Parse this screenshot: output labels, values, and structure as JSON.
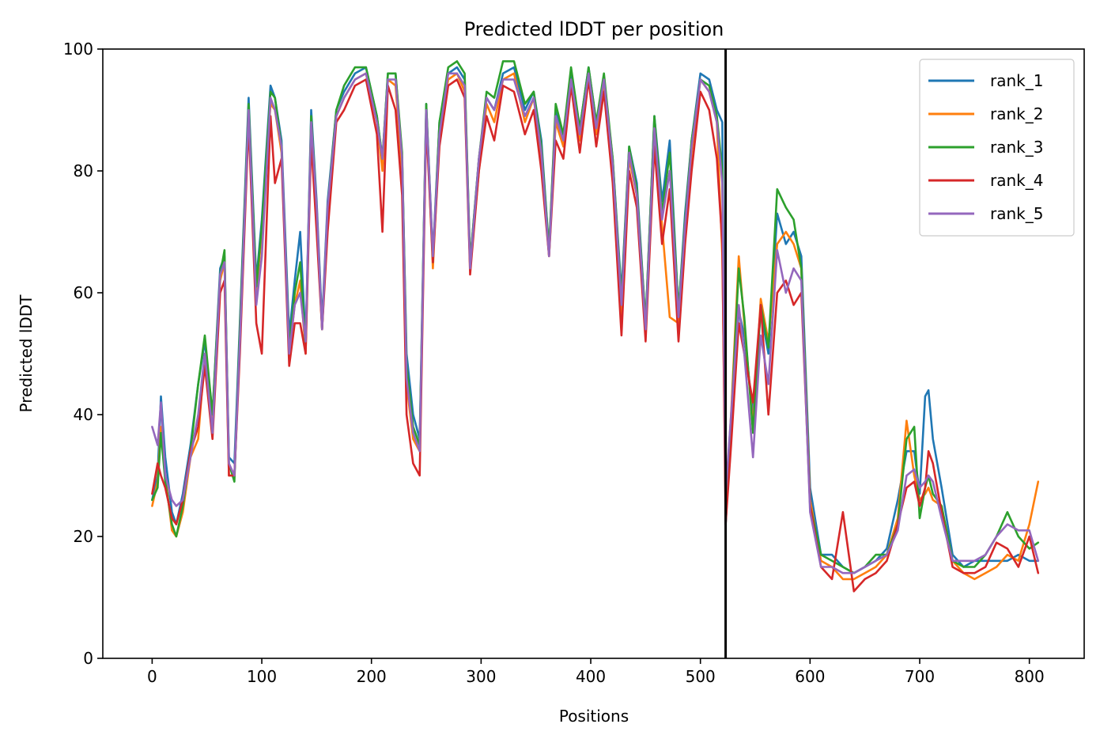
{
  "chart_data": {
    "type": "line",
    "title": "Predicted lDDT per position",
    "xlabel": "Positions",
    "ylabel": "Predicted lDDT",
    "xlim": [
      -45,
      850
    ],
    "ylim": [
      0,
      100
    ],
    "xticks": [
      0,
      100,
      200,
      300,
      400,
      500,
      600,
      700,
      800
    ],
    "yticks": [
      0,
      20,
      40,
      60,
      80,
      100
    ],
    "grid": false,
    "legend_position": "top-right",
    "vline_x": 523,
    "series": [
      {
        "name": "rank_1",
        "color": "#1f77b4",
        "x": [
          0,
          5,
          8,
          12,
          18,
          22,
          28,
          35,
          42,
          48,
          55,
          62,
          66,
          70,
          75,
          80,
          88,
          95,
          100,
          108,
          112,
          118,
          125,
          130,
          135,
          140,
          145,
          150,
          155,
          160,
          168,
          175,
          185,
          195,
          205,
          210,
          215,
          222,
          228,
          232,
          238,
          244,
          250,
          256,
          262,
          270,
          278,
          285,
          290,
          298,
          305,
          312,
          320,
          330,
          340,
          348,
          355,
          362,
          368,
          375,
          382,
          390,
          398,
          405,
          412,
          420,
          428,
          435,
          442,
          450,
          458,
          465,
          472,
          480,
          486,
          492,
          500,
          508,
          515,
          520,
          523,
          528,
          535,
          540,
          548,
          555,
          562,
          570,
          578,
          585,
          592,
          600,
          610,
          620,
          630,
          640,
          650,
          660,
          670,
          680,
          688,
          695,
          700,
          705,
          708,
          712,
          720,
          730,
          740,
          750,
          760,
          770,
          780,
          790,
          800,
          808
        ],
        "y": [
          26,
          30,
          43,
          33,
          24,
          22,
          27,
          35,
          45,
          52,
          40,
          64,
          66,
          33,
          32,
          55,
          92,
          62,
          72,
          94,
          92,
          85,
          53,
          62,
          70,
          52,
          90,
          75,
          55,
          75,
          90,
          93,
          96,
          97,
          89,
          82,
          96,
          96,
          82,
          50,
          40,
          36,
          91,
          66,
          88,
          96,
          97,
          95,
          65,
          82,
          92,
          90,
          96,
          97,
          90,
          93,
          85,
          67,
          90,
          86,
          96,
          87,
          97,
          88,
          95,
          82,
          60,
          84,
          78,
          55,
          89,
          75,
          85,
          57,
          73,
          85,
          96,
          95,
          90,
          88,
          22,
          38,
          57,
          53,
          40,
          57,
          50,
          73,
          68,
          70,
          66,
          28,
          17,
          17,
          15,
          14,
          15,
          16,
          18,
          26,
          34,
          34,
          27,
          43,
          44,
          36,
          28,
          17,
          15,
          16,
          16,
          16,
          16,
          17,
          16,
          16
        ]
      },
      {
        "name": "rank_2",
        "color": "#ff7f0e",
        "x": [
          0,
          5,
          8,
          12,
          18,
          22,
          28,
          35,
          42,
          48,
          55,
          62,
          66,
          70,
          75,
          80,
          88,
          95,
          100,
          108,
          112,
          118,
          125,
          130,
          135,
          140,
          145,
          150,
          155,
          160,
          168,
          175,
          185,
          195,
          205,
          210,
          215,
          222,
          228,
          232,
          238,
          244,
          250,
          256,
          262,
          270,
          278,
          285,
          290,
          298,
          305,
          312,
          320,
          330,
          340,
          348,
          355,
          362,
          368,
          375,
          382,
          390,
          398,
          405,
          412,
          420,
          428,
          435,
          442,
          450,
          458,
          465,
          472,
          480,
          486,
          492,
          500,
          508,
          515,
          520,
          523,
          528,
          535,
          540,
          548,
          555,
          562,
          570,
          578,
          585,
          592,
          600,
          610,
          620,
          630,
          640,
          650,
          660,
          670,
          680,
          688,
          695,
          700,
          705,
          708,
          712,
          720,
          730,
          740,
          750,
          760,
          770,
          780,
          790,
          800,
          808
        ],
        "y": [
          25,
          29,
          38,
          30,
          21,
          20,
          24,
          33,
          36,
          50,
          38,
          62,
          65,
          30,
          30,
          52,
          90,
          60,
          70,
          91,
          90,
          83,
          50,
          58,
          62,
          50,
          88,
          72,
          54,
          72,
          89,
          92,
          95,
          96,
          88,
          80,
          95,
          94,
          80,
          45,
          36,
          34,
          90,
          64,
          86,
          95,
          96,
          93,
          64,
          80,
          91,
          88,
          95,
          96,
          88,
          92,
          82,
          66,
          88,
          84,
          95,
          85,
          96,
          86,
          94,
          80,
          56,
          82,
          76,
          54,
          87,
          71,
          56,
          55,
          70,
          83,
          95,
          93,
          88,
          66,
          26,
          40,
          66,
          55,
          38,
          59,
          52,
          68,
          70,
          68,
          64,
          26,
          16,
          15,
          13,
          13,
          14,
          15,
          17,
          23,
          39,
          30,
          26,
          27,
          28,
          26,
          25,
          16,
          14,
          13,
          14,
          15,
          17,
          16,
          22,
          29
        ]
      },
      {
        "name": "rank_3",
        "color": "#2ca02c",
        "x": [
          0,
          5,
          8,
          12,
          18,
          22,
          28,
          35,
          42,
          48,
          55,
          62,
          66,
          70,
          75,
          80,
          88,
          95,
          100,
          108,
          112,
          118,
          125,
          130,
          135,
          140,
          145,
          150,
          155,
          160,
          168,
          175,
          185,
          195,
          205,
          210,
          215,
          222,
          228,
          232,
          238,
          244,
          250,
          256,
          262,
          270,
          278,
          285,
          290,
          298,
          305,
          312,
          320,
          330,
          340,
          348,
          355,
          362,
          368,
          375,
          382,
          390,
          398,
          405,
          412,
          420,
          428,
          435,
          442,
          450,
          458,
          465,
          472,
          480,
          486,
          492,
          500,
          508,
          515,
          520,
          523,
          528,
          535,
          540,
          548,
          555,
          562,
          570,
          578,
          585,
          592,
          600,
          610,
          620,
          630,
          640,
          650,
          660,
          670,
          680,
          688,
          695,
          700,
          705,
          708,
          712,
          720,
          730,
          740,
          750,
          760,
          770,
          780,
          790,
          800,
          808
        ],
        "y": [
          26,
          28,
          37,
          29,
          22,
          20,
          25,
          34,
          45,
          53,
          40,
          63,
          67,
          32,
          29,
          54,
          91,
          61,
          71,
          93,
          92,
          84,
          51,
          60,
          65,
          51,
          89,
          74,
          54,
          74,
          90,
          94,
          97,
          97,
          89,
          82,
          96,
          96,
          83,
          48,
          38,
          35,
          91,
          65,
          88,
          97,
          98,
          96,
          65,
          82,
          93,
          92,
          98,
          98,
          91,
          93,
          84,
          67,
          91,
          86,
          97,
          87,
          97,
          88,
          96,
          82,
          59,
          84,
          77,
          55,
          89,
          73,
          83,
          57,
          72,
          85,
          95,
          94,
          89,
          80,
          24,
          39,
          64,
          56,
          37,
          58,
          51,
          77,
          74,
          72,
          64,
          25,
          17,
          16,
          15,
          14,
          15,
          17,
          17,
          22,
          36,
          38,
          23,
          28,
          30,
          27,
          25,
          16,
          15,
          15,
          17,
          20,
          24,
          20,
          18,
          19
        ]
      },
      {
        "name": "rank_4",
        "color": "#d62728",
        "x": [
          0,
          5,
          8,
          12,
          18,
          22,
          28,
          35,
          42,
          48,
          55,
          62,
          66,
          70,
          75,
          80,
          88,
          95,
          100,
          108,
          112,
          118,
          125,
          130,
          135,
          140,
          145,
          150,
          155,
          160,
          168,
          175,
          185,
          195,
          205,
          210,
          215,
          222,
          228,
          232,
          238,
          244,
          250,
          256,
          262,
          270,
          278,
          285,
          290,
          298,
          305,
          312,
          320,
          330,
          340,
          348,
          355,
          362,
          368,
          375,
          382,
          390,
          398,
          405,
          412,
          420,
          428,
          435,
          442,
          450,
          458,
          465,
          472,
          480,
          486,
          492,
          500,
          508,
          515,
          520,
          523,
          528,
          535,
          540,
          548,
          555,
          562,
          570,
          578,
          585,
          592,
          600,
          610,
          620,
          630,
          640,
          650,
          660,
          670,
          680,
          688,
          695,
          700,
          705,
          708,
          712,
          720,
          730,
          740,
          750,
          760,
          770,
          780,
          790,
          800,
          808
        ],
        "y": [
          27,
          32,
          30,
          28,
          23,
          22,
          26,
          34,
          38,
          48,
          36,
          60,
          62,
          30,
          30,
          50,
          88,
          55,
          50,
          89,
          78,
          82,
          48,
          55,
          55,
          50,
          85,
          70,
          54,
          70,
          88,
          90,
          94,
          95,
          86,
          70,
          94,
          90,
          76,
          40,
          32,
          30,
          88,
          65,
          84,
          94,
          95,
          92,
          63,
          80,
          89,
          85,
          94,
          93,
          86,
          90,
          80,
          66,
          85,
          82,
          94,
          83,
          95,
          84,
          93,
          78,
          53,
          80,
          74,
          52,
          84,
          68,
          77,
          52,
          68,
          80,
          93,
          90,
          82,
          68,
          22,
          35,
          55,
          50,
          42,
          58,
          40,
          60,
          62,
          58,
          60,
          25,
          15,
          13,
          24,
          11,
          13,
          14,
          16,
          22,
          28,
          29,
          25,
          28,
          34,
          32,
          24,
          15,
          14,
          14,
          15,
          19,
          18,
          15,
          20,
          14
        ]
      },
      {
        "name": "rank_5",
        "color": "#9467bd",
        "x": [
          0,
          5,
          8,
          12,
          18,
          22,
          28,
          35,
          42,
          48,
          55,
          62,
          66,
          70,
          75,
          80,
          88,
          95,
          100,
          108,
          112,
          118,
          125,
          130,
          135,
          140,
          145,
          150,
          155,
          160,
          168,
          175,
          185,
          195,
          205,
          210,
          215,
          222,
          228,
          232,
          238,
          244,
          250,
          256,
          262,
          270,
          278,
          285,
          290,
          298,
          305,
          312,
          320,
          330,
          340,
          348,
          355,
          362,
          368,
          375,
          382,
          390,
          398,
          405,
          412,
          420,
          428,
          435,
          442,
          450,
          458,
          465,
          472,
          480,
          486,
          492,
          500,
          508,
          515,
          520,
          523,
          528,
          535,
          540,
          548,
          555,
          562,
          570,
          578,
          585,
          592,
          600,
          610,
          620,
          630,
          640,
          650,
          660,
          670,
          680,
          688,
          695,
          700,
          705,
          708,
          712,
          720,
          730,
          740,
          750,
          760,
          770,
          780,
          790,
          800,
          808
        ],
        "y": [
          38,
          35,
          42,
          30,
          26,
          25,
          26,
          33,
          40,
          50,
          37,
          63,
          65,
          32,
          30,
          52,
          90,
          58,
          66,
          92,
          90,
          84,
          50,
          58,
          60,
          52,
          88,
          74,
          54,
          74,
          89,
          92,
          95,
          96,
          88,
          82,
          95,
          95,
          82,
          46,
          37,
          34,
          90,
          66,
          86,
          96,
          96,
          94,
          64,
          82,
          92,
          90,
          95,
          95,
          89,
          92,
          83,
          66,
          89,
          85,
          95,
          86,
          96,
          87,
          95,
          81,
          58,
          83,
          76,
          54,
          87,
          72,
          80,
          56,
          71,
          84,
          95,
          93,
          88,
          78,
          27,
          40,
          58,
          50,
          33,
          53,
          45,
          67,
          60,
          64,
          62,
          24,
          15,
          15,
          14,
          14,
          15,
          16,
          17,
          21,
          30,
          31,
          28,
          29,
          30,
          29,
          23,
          16,
          16,
          16,
          17,
          20,
          22,
          21,
          21,
          16
        ]
      }
    ]
  }
}
